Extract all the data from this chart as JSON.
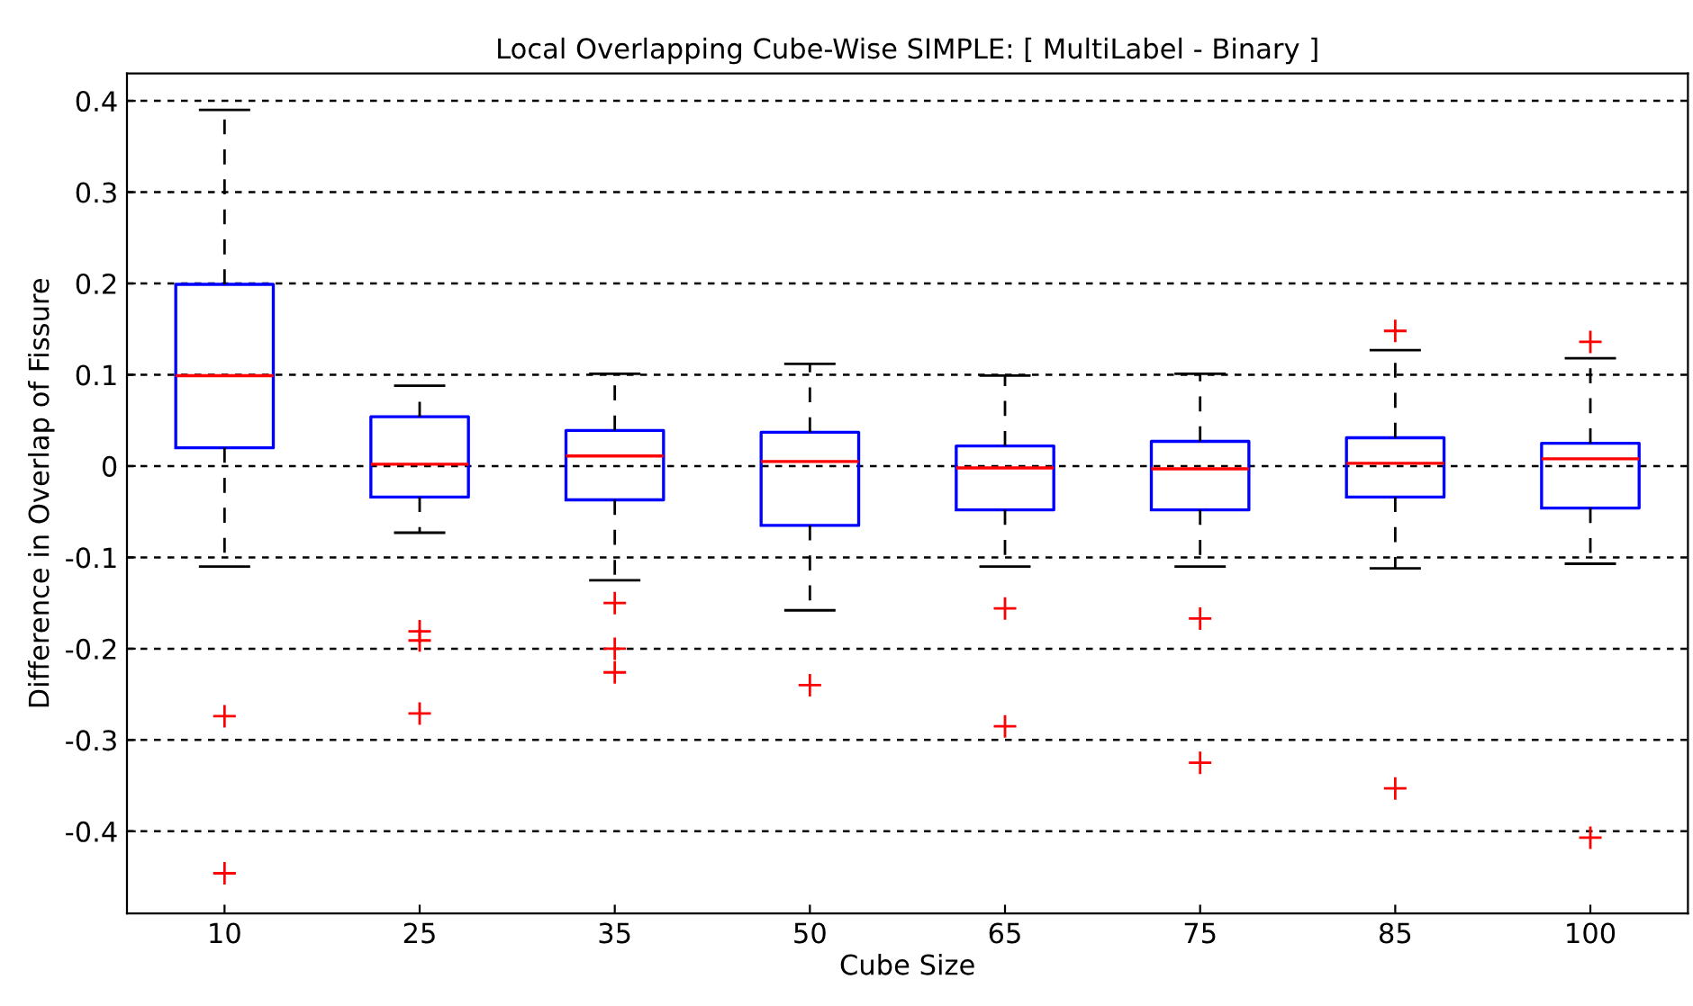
{
  "chart_data": {
    "type": "box",
    "title": "Local Overlapping Cube-Wise SIMPLE: [ MultiLabel - Binary ]",
    "xlabel": "Cube Size",
    "ylabel": "Difference in Overlap of Fissure",
    "categories": [
      "10",
      "25",
      "35",
      "50",
      "65",
      "75",
      "85",
      "100"
    ],
    "series": [
      {
        "color": "#0000ff",
        "boxes": [
          {
            "low": -0.11,
            "q1": 0.02,
            "median": 0.099,
            "q3": 0.199,
            "high": 0.39,
            "outliers": [
              -0.274,
              -0.446
            ]
          },
          {
            "low": -0.073,
            "q1": -0.034,
            "median": 0.002,
            "q3": 0.054,
            "high": 0.088,
            "outliers": [
              -0.181,
              -0.191,
              -0.271
            ]
          },
          {
            "low": -0.125,
            "q1": -0.037,
            "median": 0.011,
            "q3": 0.039,
            "high": 0.101,
            "outliers": [
              -0.15,
              -0.2,
              -0.226
            ]
          },
          {
            "low": -0.158,
            "q1": -0.065,
            "median": 0.005,
            "q3": 0.037,
            "high": 0.112,
            "outliers": [
              -0.24
            ]
          },
          {
            "low": -0.11,
            "q1": -0.048,
            "median": -0.002,
            "q3": 0.022,
            "high": 0.099,
            "outliers": [
              -0.156,
              -0.285
            ]
          },
          {
            "low": -0.11,
            "q1": -0.048,
            "median": -0.003,
            "q3": 0.027,
            "high": 0.101,
            "outliers": [
              -0.167,
              -0.325
            ]
          },
          {
            "low": -0.112,
            "q1": -0.034,
            "median": 0.003,
            "q3": 0.031,
            "high": 0.127,
            "outliers": [
              0.148,
              -0.353
            ]
          },
          {
            "low": -0.107,
            "q1": -0.046,
            "median": 0.008,
            "q3": 0.025,
            "high": 0.118,
            "outliers": [
              0.136,
              -0.407
            ]
          }
        ]
      }
    ],
    "ylim": [
      -0.49,
      0.43
    ],
    "yticks": [
      -0.4,
      -0.3,
      -0.2,
      -0.1,
      0,
      0.1,
      0.2,
      0.3,
      0.4
    ],
    "grid": "y",
    "marker": "cross",
    "line_style": "dashed"
  }
}
